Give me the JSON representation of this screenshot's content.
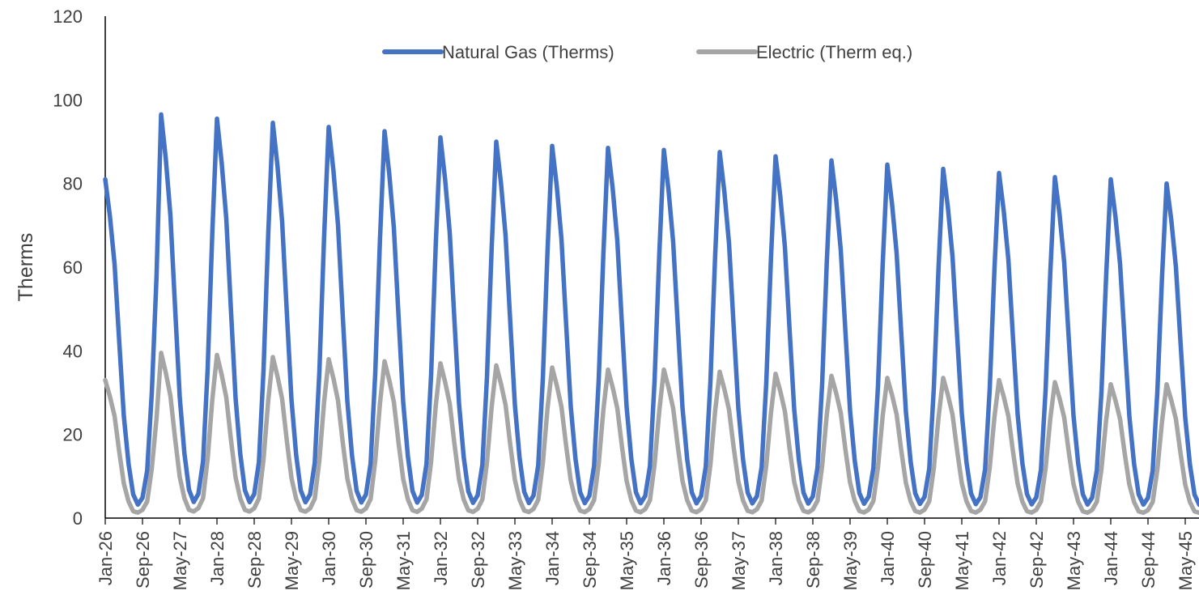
{
  "chart_data": {
    "type": "line",
    "ylabel": "Therms",
    "ylim": [
      0,
      120
    ],
    "yticks": [
      0,
      20,
      40,
      60,
      80,
      100,
      120
    ],
    "x_start": "Jan-26",
    "x_end": "Nov-45",
    "months_per_tick": 8,
    "xtick_labels": [
      "Jan-26",
      "Sep-26",
      "May-27",
      "Jan-28",
      "Sep-28",
      "May-29",
      "Jan-30",
      "Sep-30",
      "May-31",
      "Jan-32",
      "Sep-32",
      "May-33",
      "Jan-34",
      "Sep-34",
      "May-35",
      "Jan-36",
      "Sep-36",
      "May-37",
      "Jan-38",
      "Sep-38",
      "May-39",
      "Jan-40",
      "Sep-40",
      "May-41",
      "Jan-42",
      "Sep-42",
      "May-43",
      "Jan-44",
      "Sep-44",
      "May-45"
    ],
    "grid": false,
    "legend": "top-center",
    "series": [
      {
        "name": "Natural Gas (Therms)",
        "color": "#4472C4",
        "annual_peak_month": "Jan",
        "annual_peaks": [
          {
            "year": 2026,
            "value": 81
          },
          {
            "year": 2027,
            "value": 96.5
          },
          {
            "year": 2028,
            "value": 95.5
          },
          {
            "year": 2029,
            "value": 94.5
          },
          {
            "year": 2030,
            "value": 93.5
          },
          {
            "year": 2031,
            "value": 92.5
          },
          {
            "year": 2032,
            "value": 91
          },
          {
            "year": 2033,
            "value": 90
          },
          {
            "year": 2034,
            "value": 89
          },
          {
            "year": 2035,
            "value": 88.5
          },
          {
            "year": 2036,
            "value": 88
          },
          {
            "year": 2037,
            "value": 87.5
          },
          {
            "year": 2038,
            "value": 86.5
          },
          {
            "year": 2039,
            "value": 85.5
          },
          {
            "year": 2040,
            "value": 84.5
          },
          {
            "year": 2041,
            "value": 83.5
          },
          {
            "year": 2042,
            "value": 82.5
          },
          {
            "year": 2043,
            "value": 81.5
          },
          {
            "year": 2044,
            "value": 81
          },
          {
            "year": 2045,
            "value": 80
          }
        ],
        "monthly_profile": [
          1.0,
          0.89,
          0.75,
          0.52,
          0.3,
          0.16,
          0.07,
          0.04,
          0.06,
          0.14,
          0.37,
          0.71
        ]
      },
      {
        "name": "Electric (Therm eq.)",
        "color": "#A5A5A5",
        "annual_peak_month": "Jan",
        "annual_peaks": [
          {
            "year": 2026,
            "value": 33
          },
          {
            "year": 2027,
            "value": 39.5
          },
          {
            "year": 2028,
            "value": 39
          },
          {
            "year": 2029,
            "value": 38.5
          },
          {
            "year": 2030,
            "value": 38
          },
          {
            "year": 2031,
            "value": 37.5
          },
          {
            "year": 2032,
            "value": 37
          },
          {
            "year": 2033,
            "value": 36.5
          },
          {
            "year": 2034,
            "value": 36
          },
          {
            "year": 2035,
            "value": 35.5
          },
          {
            "year": 2036,
            "value": 35.5
          },
          {
            "year": 2037,
            "value": 35
          },
          {
            "year": 2038,
            "value": 34.5
          },
          {
            "year": 2039,
            "value": 34
          },
          {
            "year": 2040,
            "value": 33.5
          },
          {
            "year": 2041,
            "value": 33.5
          },
          {
            "year": 2042,
            "value": 33
          },
          {
            "year": 2043,
            "value": 32.5
          },
          {
            "year": 2044,
            "value": 32
          },
          {
            "year": 2045,
            "value": 32
          }
        ],
        "monthly_profile": [
          1.0,
          0.88,
          0.74,
          0.48,
          0.25,
          0.12,
          0.05,
          0.04,
          0.06,
          0.12,
          0.36,
          0.72
        ]
      }
    ]
  }
}
